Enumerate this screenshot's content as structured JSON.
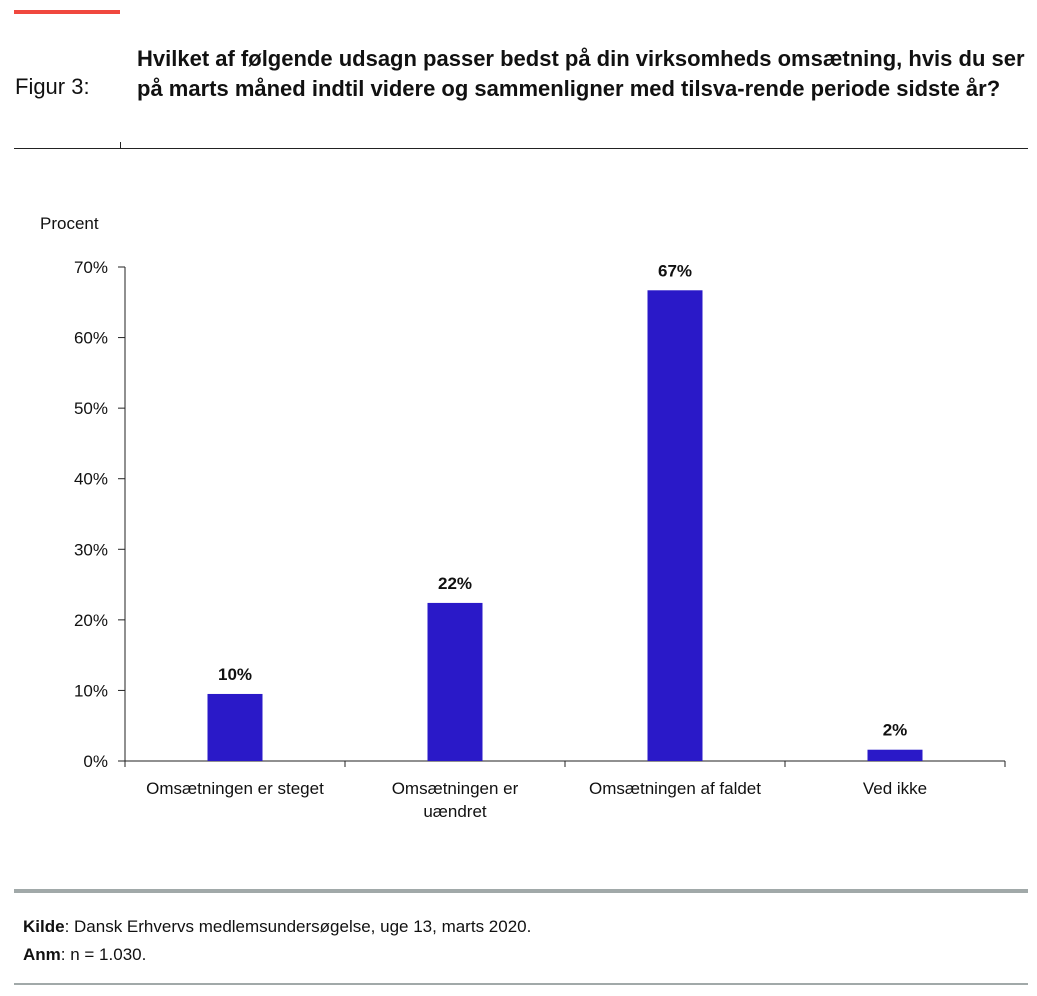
{
  "header": {
    "figure_label": "Figur 3:",
    "title": "Hvilket af følgende udsagn passer bedst på din virksomheds omsætning, hvis du ser på marts måned indtil videre og sammenligner med tilsva-rende periode sidste år?",
    "accent_color": "#f0483e"
  },
  "chart_data": {
    "type": "bar",
    "ylabel": "Procent",
    "ylim": [
      0,
      70
    ],
    "yticks": [
      "0%",
      "10%",
      "20%",
      "30%",
      "40%",
      "50%",
      "60%",
      "70%"
    ],
    "categories": [
      [
        "Omsætningen er steget"
      ],
      [
        "Omsætningen er",
        "uændret"
      ],
      [
        "Omsætningen af faldet"
      ],
      [
        "Ved ikke"
      ]
    ],
    "values": [
      9.5,
      22.4,
      66.7,
      1.6
    ],
    "data_labels": [
      "10%",
      "22%",
      "67%",
      "2%"
    ],
    "bar_color": "#2a19c8",
    "grid": false,
    "legend": "none"
  },
  "footer": {
    "source_label": "Kilde",
    "source_text": ": Dansk Erhvervs medlemsundersøgelse, uge 13, marts 2020.",
    "note_label": "Anm",
    "note_text": ": n = 1.030."
  }
}
